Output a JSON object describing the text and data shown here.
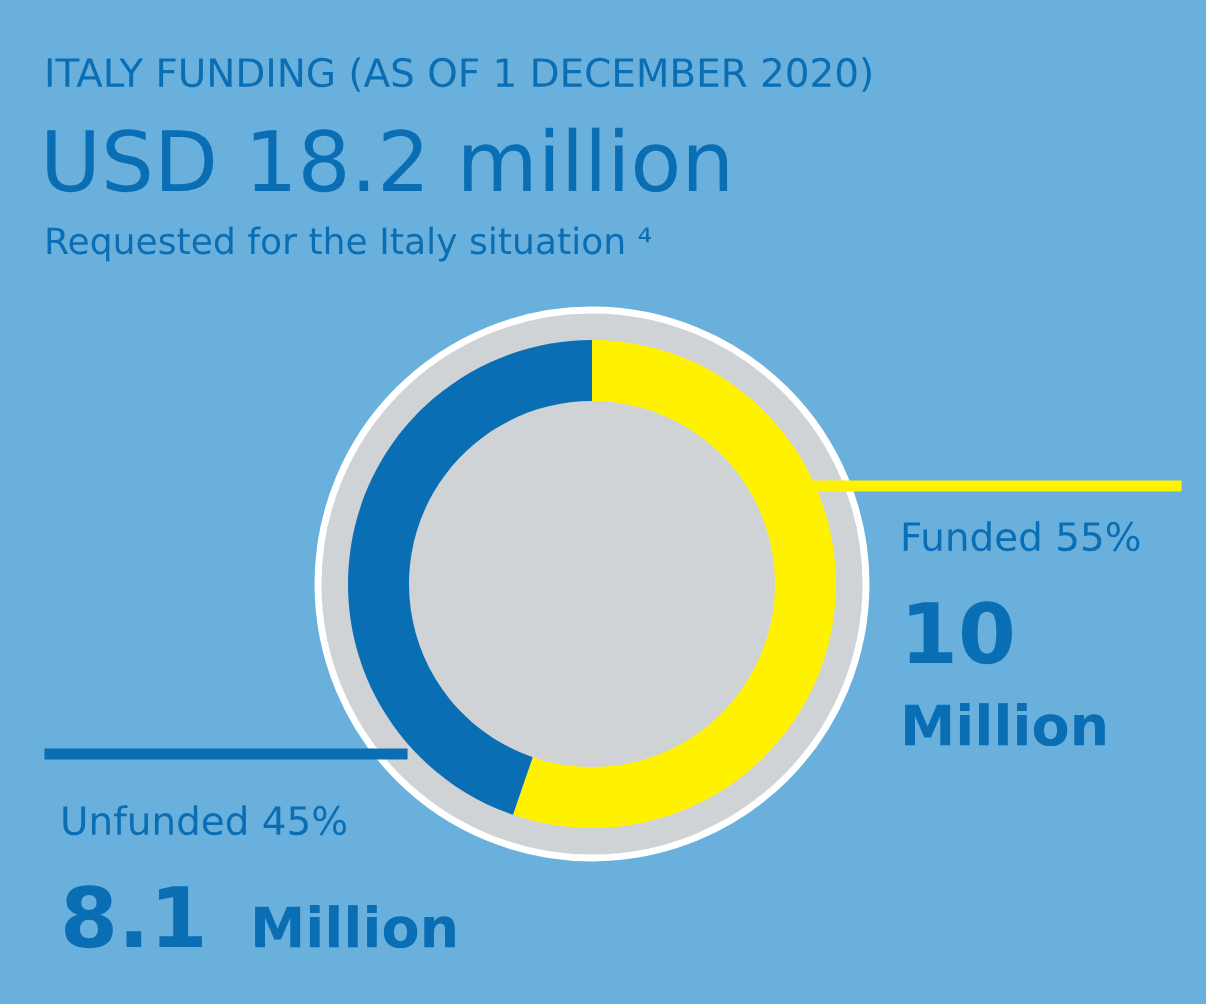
{
  "chart_data": {
    "type": "donut",
    "title": "ITALY FUNDING (AS OF 1 DECEMBER 2020)",
    "subtitle": "USD 18.2 million",
    "annotations": [
      "Requested for the Italy situation ⁴"
    ],
    "categories": [
      "Funded 55%",
      "Unfunded 45%"
    ],
    "values": [
      10,
      8.1
    ],
    "colors": [
      "#fff200",
      "#0a6eb4"
    ],
    "value_labels": [
      "10 Million",
      "8.1 Million"
    ],
    "legend": false
  }
}
